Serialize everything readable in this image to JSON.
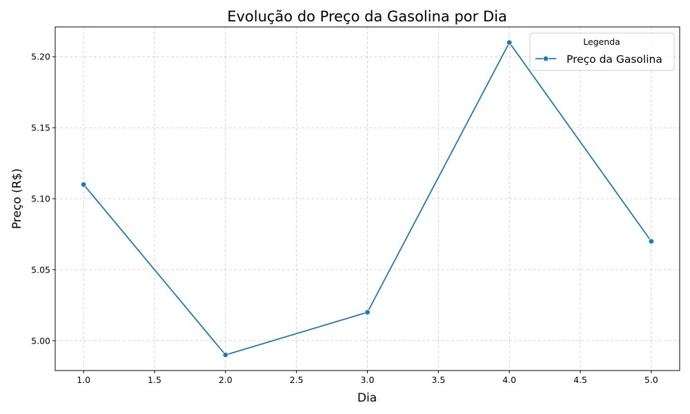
{
  "chart_data": {
    "type": "line",
    "title": "Evolução do Preço da Gasolina por Dia",
    "xlabel": "Dia",
    "ylabel": "Preço (R$)",
    "xlim": [
      0.8,
      5.2
    ],
    "ylim": [
      4.979,
      5.221
    ],
    "x_ticks": [
      1.0,
      1.5,
      2.0,
      2.5,
      3.0,
      3.5,
      4.0,
      4.5,
      5.0
    ],
    "x_tick_labels": [
      "1.0",
      "1.5",
      "2.0",
      "2.5",
      "3.0",
      "3.5",
      "4.0",
      "4.5",
      "5.0"
    ],
    "y_ticks": [
      5.0,
      5.05,
      5.1,
      5.15,
      5.2
    ],
    "y_tick_labels": [
      "5.00",
      "5.05",
      "5.10",
      "5.15",
      "5.20"
    ],
    "grid": true,
    "legend": {
      "title": "Legenda",
      "placement": "top-right"
    },
    "series": [
      {
        "name": "Preço da Gasolina",
        "color": "#1f77b4",
        "marker": "circle",
        "x": [
          1,
          2,
          3,
          4,
          5
        ],
        "values": [
          5.11,
          4.99,
          5.02,
          5.21,
          5.07
        ]
      }
    ]
  }
}
